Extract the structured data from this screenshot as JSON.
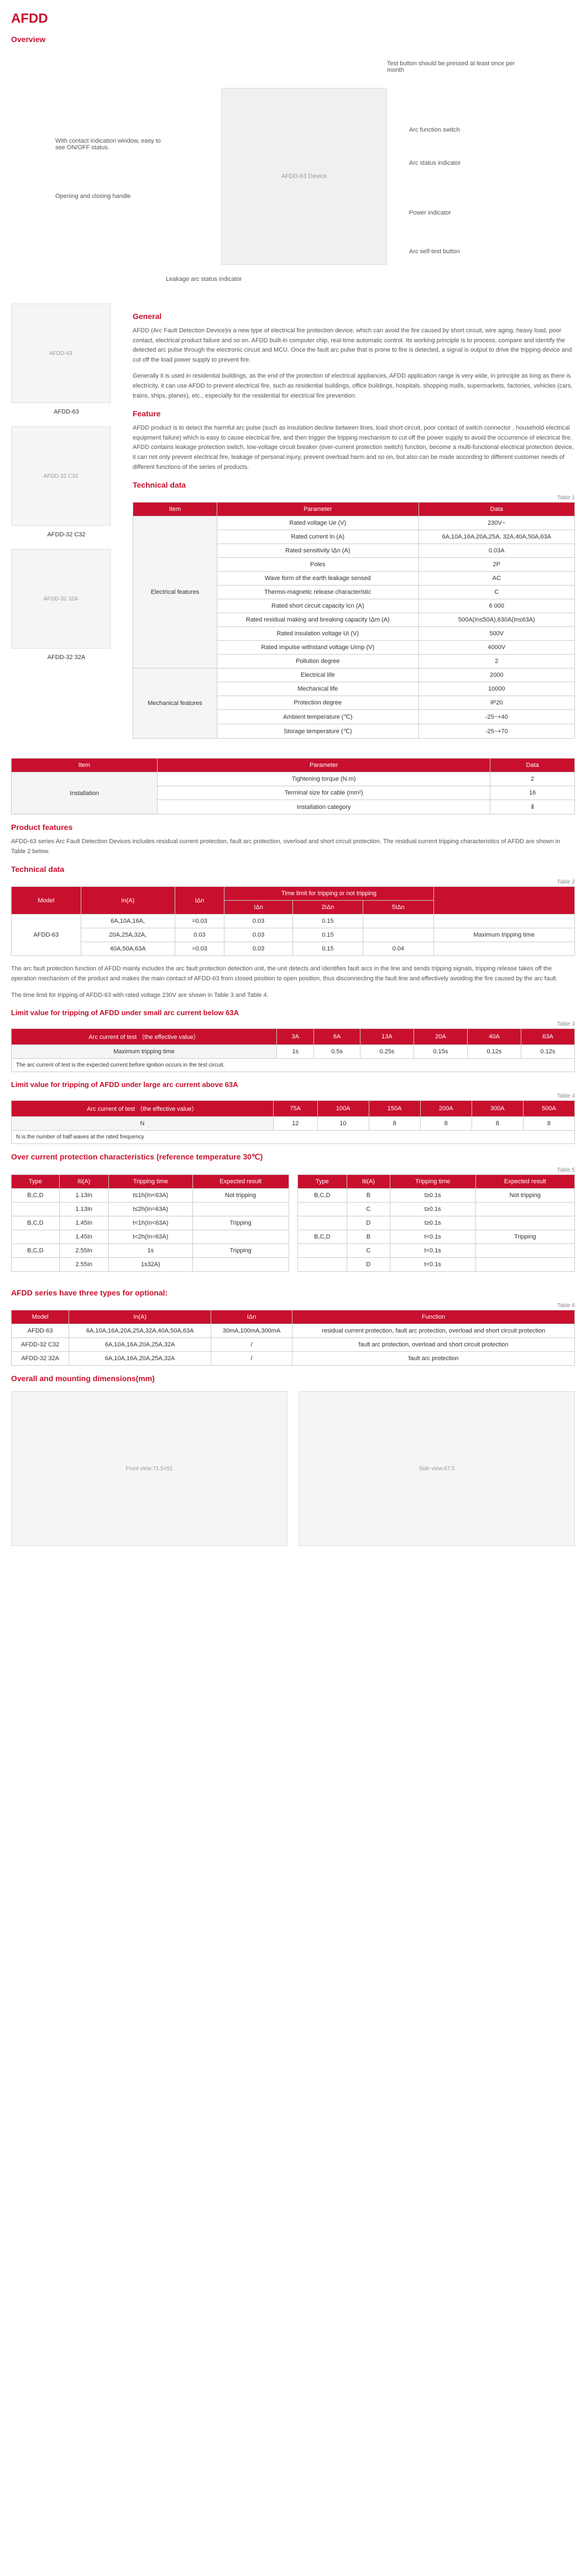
{
  "title": "AFDD",
  "sections": {
    "overview": "Overview",
    "general": "General",
    "feature": "Feature",
    "techdata": "Technical data",
    "prodfeat": "Product features",
    "techdata2": "Technical data",
    "limit63": "Limit value for tripping of AFDD under small arc current below 63A",
    "limit63a": "Limit value for tripping of AFDD under large arc current above 63A",
    "overcurrent": "Over current protection characteristics (reference temperature 30℃)",
    "types": "AFDD series have three types for optional:",
    "dimensions": "Overall and mounting dimensions(mm)"
  },
  "callouts": {
    "c1": "Test button should be pressed at least once per month",
    "c2": "Arc function switch",
    "c3": "Arc status indicator",
    "c4": "Power indicator",
    "c5": "Arc self-test button",
    "c6": "With contact indication window, easy to see ON/OFF status.",
    "c7": "Opening and closing handle",
    "c8": "Leakage arc status indicator"
  },
  "sideCaps": {
    "s1": "AFDD-63",
    "s2": "AFDD-32 C32",
    "s3": "AFDD-32 32A"
  },
  "general_p1": "AFDD (Arc Fault Detection Device)is a new type of electrical fire protection device, which can avoid the fire caused by short circuit, wire aging, heavy load, poor contact, electrical product failure and so on. AFDD built-in computer chip, real-time automatic control. Its working principle is to process, compare and identify the detected arc pulse through the electronic circuit and MCU. Once the fault arc pulse that is prone to fire is detected, a signal is output to drive the tripping device and cut off the load power supply to prevent fire.",
  "general_p2": "Generally it is used in residential buildings, as the end of the protection of electrical appliances, AFDD application range is very wide, in principle as long as there is electricity, it can use AFDD to prevent electrical fire, such as residential buildings, office buildings, hospitals, shopping malls, supermarkets, factories, vehicles (cars, trains, ships, planes), etc., especially for the residential for electrical fire prevention.",
  "feature_p": "AFDD product is to detect the harmful arc pulse (such as insulation decline between lines, load short circuit, poor contact of switch connector , household electrical equipment failure) which is easy to cause electrical fire, and then trigger the tripping mechanism to cut off the power supply to avoid the occurrence of electrical fire. AFDD contains leakage protection switch, low-voltage circuit breaker (over-current protection switch) function, become a multi-functional electrical protection device, it can not only prevent electrical fire, leakage of personal injury, prevent overload harm and so on, but also can be made according to different customer needs of different functions of the series of products.",
  "prodfeat_p": "AFDD-63 series Arc Fault Detection Devices includes residual current protection,  fault arc protection, overload and short circuit protection.  The residual current tripping characteristics of AFDD  are shown in Table 2 below.",
  "arc_p": "The arc fault protection function of AFDD mainly includes the arc fault protection  detection unit, the unit detects and identifies fault arcs in the line and sends tripping signals,  tripping release takes off the operation mechanism of the product and makes the main contact of AFDD-63 from closed position to open position, thus disconnecting the fault line and effectively avoiding the fire caused by the arc fault.",
  "arc_p2": "The time limit for tripping of AFDD-63 with rated voltage 230V are shown in Table 3 and Table 4.",
  "t1_label": "Table 1",
  "t2_label": "Table 2",
  "t3_label": "Table 3",
  "t4_label": "Table 4",
  "t5_label": "Table 5",
  "t6_label": "Table 6",
  "t1": {
    "headers": [
      "Item",
      "Parameter",
      "Data"
    ],
    "groups": [
      {
        "group": "Electrical features",
        "rows": [
          [
            "Rated voltage Ue (V)",
            "230V~"
          ],
          [
            "Rated current In (A)",
            "6A,10A,16A,20A,25A, 32A,40A,50A,63A"
          ],
          [
            "Rated sensitivity IΔn (A)",
            "0.03A"
          ],
          [
            "Poles",
            "2P"
          ],
          [
            "Wave form of the earth leakage sensed",
            "AC"
          ],
          [
            "Thermo-magnetic release characteristic",
            "C"
          ],
          [
            "Rated short circuit capacity Icn (A)",
            "6 000"
          ],
          [
            "Rated residual making and breaking capacity IΔm (A)",
            "500A(In≤50A),630A(In≤63A)"
          ],
          [
            "Rated insulation voltage Ui (V)",
            "500V"
          ],
          [
            "Rated impulse withstand voltage Uimp (V)",
            "4000V"
          ],
          [
            "Pollution degree",
            "2"
          ]
        ]
      },
      {
        "group": "Mechanical features",
        "rows": [
          [
            "Electrical life",
            "2000"
          ],
          [
            "Mechanical life",
            "10000"
          ],
          [
            "Protection degree",
            "IP20"
          ],
          [
            "Ambient temperature (℃)",
            "-25~+40"
          ],
          [
            "Storage temperature (℃)",
            "-25~+70"
          ]
        ]
      }
    ]
  },
  "t1b": {
    "headers": [
      "Item",
      "Parameter",
      "Data"
    ],
    "group": "Installation",
    "rows": [
      [
        "Tightening torque (N.m)",
        "2"
      ],
      [
        "Terminal size for cable (mm²)",
        "16"
      ],
      [
        "Installation category",
        "Ⅱ"
      ]
    ]
  },
  "t2": {
    "h1": "Model",
    "h2": "In(A)",
    "h3": "IΔn",
    "h4": "Time limit for tripping or not tripping",
    "h5": "IΔn",
    "h6": "2IΔn",
    "h7": "5IΔn",
    "h8": "",
    "model": "AFDD-63",
    "rows": [
      [
        "6A,10A,16A,",
        "=0.03",
        "0.03",
        "0.15",
        "",
        ""
      ],
      [
        "20A,25A,32A,",
        "0.03",
        "0.03",
        "0.15",
        "",
        "Maximum tripping time"
      ],
      [
        "40A,50A,63A",
        "=0.03",
        "0.03",
        "0.15",
        "0.04",
        ""
      ]
    ]
  },
  "t3": {
    "h1": "Arc current of test （the effective value）",
    "cols": [
      "3A",
      "6A",
      "13A",
      "20A",
      "40A",
      "63A"
    ],
    "r1": "Maximum tripping time",
    "vals": [
      "1s",
      "0.5s",
      "0.25s",
      "0.15s",
      "0.12s",
      "0.12s"
    ],
    "note": "The arc current of test is the expected current before ignition occurs in the test circuit."
  },
  "t4": {
    "h1": "Arc current of test （the effective value）",
    "cols": [
      "75A",
      "100A",
      "150A",
      "200A",
      "300A",
      "500A"
    ],
    "r1": "N",
    "vals": [
      "12",
      "10",
      "8",
      "8",
      "8",
      "8"
    ],
    "note": "N is the number of half waves at the rated frequency"
  },
  "t5a": {
    "headers": [
      "Type",
      "Iti(A)",
      "Tripping time",
      "Expected result"
    ],
    "rows": [
      [
        "B,C,D",
        "1.13In",
        "t≤1h(In<63A)",
        "Not tripping"
      ],
      [
        "",
        "1.13In",
        "t≤2h(In=63A)",
        ""
      ],
      [
        "B,C,D",
        "1.45In",
        "t<1h(In<63A)",
        "Tripping"
      ],
      [
        "",
        "1.45In",
        "t<2h(In=63A)",
        ""
      ],
      [
        "B,C,D",
        "2.55In",
        "1s<t<60s(In≤32A)",
        "Tripping"
      ],
      [
        "",
        "2.55In",
        "1s<t<120s(In>32A)",
        ""
      ]
    ]
  },
  "t5b": {
    "headers": [
      "Type",
      "Iti(A)",
      "Tripping time",
      "Expected result"
    ],
    "rows": [
      [
        "B,C,D",
        "B",
        "t≥0.1s",
        "Not tripping"
      ],
      [
        "",
        "C",
        "t≥0.1s",
        ""
      ],
      [
        "",
        "D",
        "t≥0.1s",
        ""
      ],
      [
        "B,C,D",
        "B",
        "t<0.1s",
        "Tripping"
      ],
      [
        "",
        "C",
        "t<0.1s",
        ""
      ],
      [
        "",
        "D",
        "t<0.1s",
        ""
      ]
    ]
  },
  "t6": {
    "headers": [
      "Model",
      "In(A)",
      "IΔn",
      "Function"
    ],
    "rows": [
      [
        "AFDD-63",
        "6A,10A,16A,20A,25A,32A,40A,50A,63A",
        "30mA,100mA,300mA",
        "residual current protection, fault arc protection, overload and short circuit protection"
      ],
      [
        "AFDD-32 C32",
        "6A,10A,16A,20A,25A,32A",
        "/",
        "fault arc protection, overload and short circuit protection"
      ],
      [
        "AFDD-32 32A",
        "6A,10A,16A,20A,25A,32A",
        "/",
        "fault arc protection"
      ]
    ]
  },
  "dims": {
    "d1": "71.5",
    "d2": "51",
    "d3": "67.5"
  }
}
